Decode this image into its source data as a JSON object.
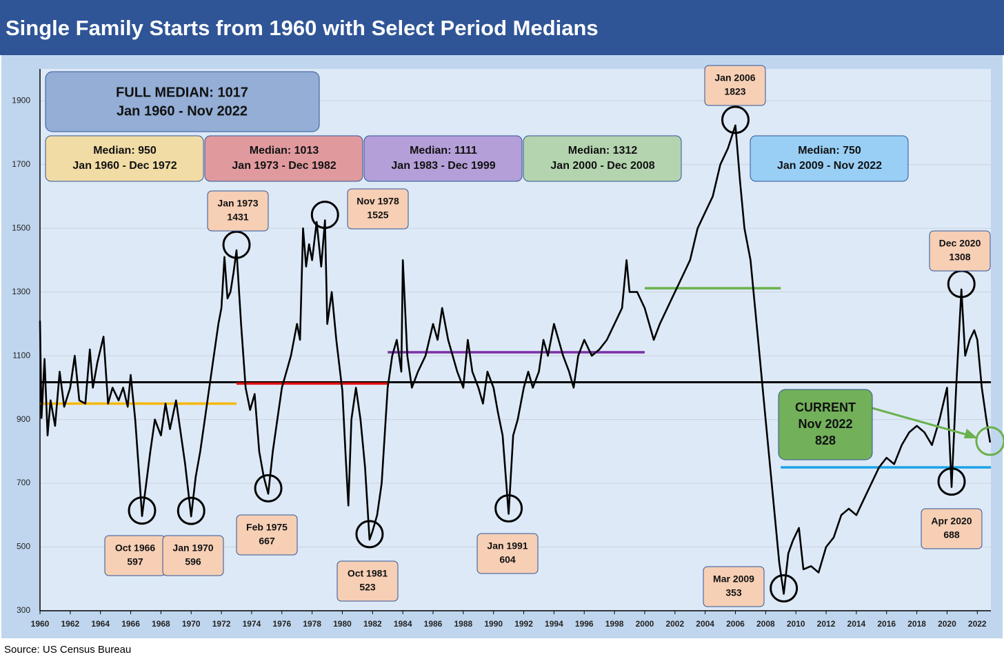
{
  "chart_data": {
    "type": "line",
    "title": "Single Family Starts from 1960 with Select Period Medians",
    "source": "Source: US Census Bureau",
    "color": "#000000",
    "xlim": [
      1960,
      2022.9
    ],
    "xticks": [
      1960,
      1962,
      1964,
      1966,
      1968,
      1970,
      1972,
      1974,
      1976,
      1978,
      1980,
      1982,
      1984,
      1986,
      1988,
      1990,
      1992,
      1994,
      1996,
      1998,
      2000,
      2002,
      2004,
      2006,
      2008,
      2010,
      2012,
      2014,
      2016,
      2018,
      2020,
      2022
    ],
    "ylim": [
      300,
      2000
    ],
    "yticks": [
      300,
      500,
      700,
      900,
      1100,
      1300,
      1500,
      1700,
      1900
    ],
    "grid": true,
    "x": [
      1960.0,
      1960.1,
      1960.3,
      1960.5,
      1960.7,
      1961.0,
      1961.3,
      1961.6,
      1962.0,
      1962.3,
      1962.6,
      1963.0,
      1963.3,
      1963.5,
      1963.8,
      1964.2,
      1964.5,
      1964.8,
      1965.2,
      1965.5,
      1965.8,
      1966.0,
      1966.3,
      1966.6,
      1966.75,
      1967.0,
      1967.3,
      1967.6,
      1968.0,
      1968.3,
      1968.6,
      1969.0,
      1969.3,
      1969.6,
      1970.0,
      1970.3,
      1970.6,
      1970.9,
      1971.2,
      1971.5,
      1971.8,
      1972.0,
      1972.2,
      1972.4,
      1972.6,
      1972.8,
      1973.0,
      1973.3,
      1973.6,
      1973.9,
      1974.2,
      1974.5,
      1974.8,
      1975.1,
      1975.4,
      1975.7,
      1976.0,
      1976.3,
      1976.6,
      1977.0,
      1977.2,
      1977.4,
      1977.6,
      1977.8,
      1978.0,
      1978.3,
      1978.6,
      1978.85,
      1979.0,
      1979.3,
      1979.6,
      1980.0,
      1980.2,
      1980.4,
      1980.6,
      1980.9,
      1981.2,
      1981.5,
      1981.8,
      1982.0,
      1982.3,
      1982.6,
      1983.0,
      1983.3,
      1983.6,
      1983.9,
      1984.0,
      1984.3,
      1984.6,
      1985.0,
      1985.5,
      1986.0,
      1986.3,
      1986.6,
      1987.0,
      1987.3,
      1987.6,
      1988.0,
      1988.3,
      1988.6,
      1989.0,
      1989.3,
      1989.6,
      1990.0,
      1990.3,
      1990.6,
      1991.0,
      1991.3,
      1991.6,
      1992.0,
      1992.3,
      1992.6,
      1993.0,
      1993.3,
      1993.6,
      1994.0,
      1994.3,
      1994.6,
      1995.0,
      1995.3,
      1995.6,
      1996.0,
      1996.5,
      1997.0,
      1997.5,
      1998.0,
      1998.5,
      1998.8,
      1999.0,
      1999.5,
      2000.0,
      2000.3,
      2000.6,
      2001.0,
      2001.5,
      2002.0,
      2002.5,
      2003.0,
      2003.5,
      2004.0,
      2004.5,
      2005.0,
      2005.5,
      2006.0,
      2006.3,
      2006.6,
      2007.0,
      2007.3,
      2007.6,
      2008.0,
      2008.3,
      2008.6,
      2008.9,
      2009.2,
      2009.5,
      2009.8,
      2010.2,
      2010.5,
      2011.0,
      2011.5,
      2012.0,
      2012.5,
      2013.0,
      2013.5,
      2014.0,
      2014.5,
      2015.0,
      2015.5,
      2016.0,
      2016.5,
      2017.0,
      2017.5,
      2018.0,
      2018.5,
      2019.0,
      2019.5,
      2020.0,
      2020.3,
      2020.6,
      2020.95,
      2021.2,
      2021.5,
      2021.8,
      2022.0,
      2022.3,
      2022.6,
      2022.85
    ],
    "values": [
      1210,
      905,
      1090,
      850,
      960,
      880,
      1050,
      940,
      1000,
      1100,
      960,
      950,
      1120,
      1000,
      1080,
      1160,
      950,
      1000,
      960,
      1000,
      940,
      1040,
      900,
      700,
      597,
      690,
      800,
      900,
      850,
      950,
      870,
      960,
      860,
      760,
      596,
      720,
      800,
      900,
      1000,
      1100,
      1200,
      1250,
      1410,
      1280,
      1300,
      1360,
      1431,
      1200,
      1000,
      930,
      980,
      800,
      720,
      667,
      800,
      900,
      1000,
      1050,
      1100,
      1200,
      1150,
      1500,
      1380,
      1450,
      1400,
      1520,
      1380,
      1525,
      1200,
      1300,
      1150,
      990,
      800,
      630,
      900,
      1000,
      900,
      750,
      523,
      550,
      600,
      700,
      1000,
      1100,
      1150,
      1050,
      1400,
      1100,
      1000,
      1050,
      1100,
      1200,
      1150,
      1250,
      1150,
      1100,
      1050,
      1000,
      1150,
      1050,
      1000,
      950,
      1050,
      1000,
      920,
      850,
      604,
      850,
      900,
      1000,
      1050,
      1000,
      1050,
      1150,
      1100,
      1200,
      1150,
      1100,
      1050,
      1000,
      1100,
      1150,
      1100,
      1120,
      1150,
      1200,
      1250,
      1400,
      1300,
      1300,
      1250,
      1200,
      1150,
      1200,
      1250,
      1300,
      1350,
      1400,
      1500,
      1550,
      1600,
      1700,
      1750,
      1823,
      1650,
      1500,
      1400,
      1250,
      1100,
      900,
      750,
      600,
      450,
      353,
      480,
      520,
      560,
      430,
      440,
      420,
      500,
      530,
      600,
      620,
      600,
      650,
      700,
      750,
      780,
      760,
      820,
      860,
      880,
      860,
      820,
      900,
      1000,
      688,
      1000,
      1308,
      1100,
      1150,
      1180,
      1150,
      1000,
      900,
      828
    ],
    "full_median": {
      "label": "FULL MEDIAN: 1017",
      "period": "Jan 1960 - Nov 2022",
      "value": 1017,
      "color": "#000000"
    },
    "medians": [
      {
        "label": "Median: 950",
        "period": "Jan 1960 - Dec 1972",
        "value": 950,
        "start": 1960,
        "end": 1973,
        "color": "#f5b800",
        "box_color": "#f1dca6"
      },
      {
        "label": "Median: 1013",
        "period": "Jan 1973 - Dec 1982",
        "value": 1013,
        "start": 1973,
        "end": 1983,
        "color": "#e01010",
        "box_color": "#e09a9e"
      },
      {
        "label": "Median: 1111",
        "period": "Jan 1983 - Dec 1999",
        "value": 1111,
        "start": 1983,
        "end": 2000,
        "color": "#7b2fa8",
        "box_color": "#b49fd8"
      },
      {
        "label": "Median: 1312",
        "period": "Jan 2000 - Dec 2008",
        "value": 1312,
        "start": 2000,
        "end": 2009,
        "color": "#6ab04c",
        "box_color": "#b3d4ae"
      },
      {
        "label": "Median: 750",
        "period": "Jan 2009 - Nov 2022",
        "value": 750,
        "start": 2009,
        "end": 2022.9,
        "color": "#1aa3e8",
        "box_color": "#99cff5"
      }
    ],
    "annotations": [
      {
        "date": "Oct 1966",
        "value": 597,
        "x": 1966.75
      },
      {
        "date": "Jan 1970",
        "value": 596,
        "x": 1970.0
      },
      {
        "date": "Jan 1973",
        "value": 1431,
        "x": 1973.0
      },
      {
        "date": "Feb 1975",
        "value": 667,
        "x": 1975.1
      },
      {
        "date": "Nov 1978",
        "value": 1525,
        "x": 1978.85
      },
      {
        "date": "Oct 1981",
        "value": 523,
        "x": 1981.8
      },
      {
        "date": "Jan 1991",
        "value": 604,
        "x": 1991.0
      },
      {
        "date": "Jan 2006",
        "value": 1823,
        "x": 2006.0
      },
      {
        "date": "Mar 2009",
        "value": 353,
        "x": 2009.2
      },
      {
        "date": "Dec 2020",
        "value": 1308,
        "x": 2020.95
      },
      {
        "date": "Apr 2020",
        "value": 688,
        "x": 2020.3
      }
    ],
    "current": {
      "label": "CURRENT",
      "date": "Nov 2022",
      "value": 828,
      "x": 2022.85,
      "color": "#6ab04c"
    }
  }
}
